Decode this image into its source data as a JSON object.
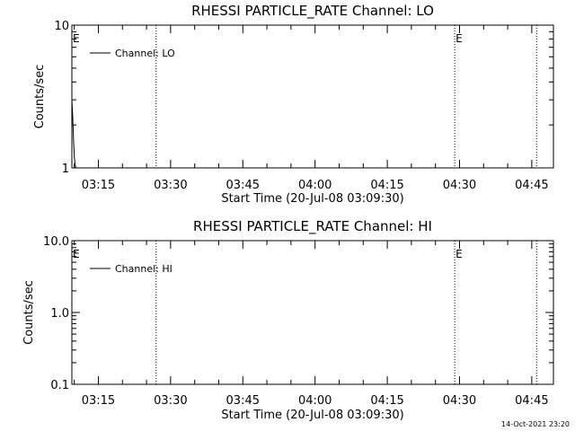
{
  "footer": {
    "timestamp": "14-Oct-2021 23:20"
  },
  "chart_data": [
    {
      "type": "line",
      "title": "RHESSI PARTICLE_RATE Channel: LO",
      "xlabel": "Start Time (20-Jul-08 03:09:30)",
      "ylabel": "Counts/sec",
      "yscale": "log",
      "ylim": [
        1,
        10
      ],
      "y_tick_labels": [
        {
          "value": 1,
          "label": "1"
        },
        {
          "value": 10,
          "label": "10"
        }
      ],
      "x_tick_labels": [
        "03:15",
        "03:30",
        "03:45",
        "04:00",
        "04:15",
        "04:30",
        "04:45"
      ],
      "series": [
        {
          "name": "Channel: LO",
          "x": [
            "03:09:30",
            "03:09:40",
            "03:09:50",
            "03:10:00",
            "03:10:10",
            "03:10:20"
          ],
          "y": [
            3.0,
            2.3,
            1.6,
            1.2,
            1.05,
            1.0
          ]
        }
      ],
      "vertical_markers": [
        {
          "time": "03:27",
          "label": ""
        },
        {
          "time": "04:29",
          "label": "E"
        },
        {
          "time": "04:46",
          "label": ""
        }
      ],
      "start_marker": "E",
      "legend_position": "top-left"
    },
    {
      "type": "line",
      "title": "RHESSI PARTICLE_RATE Channel: HI",
      "xlabel": "Start Time (20-Jul-08 03:09:30)",
      "ylabel": "Counts/sec",
      "yscale": "log",
      "ylim": [
        0.1,
        10
      ],
      "y_tick_labels": [
        {
          "value": 0.1,
          "label": "0.1"
        },
        {
          "value": 1,
          "label": "1.0"
        },
        {
          "value": 10,
          "label": "10.0"
        }
      ],
      "x_tick_labels": [
        "03:15",
        "03:30",
        "03:45",
        "04:00",
        "04:15",
        "04:30",
        "04:45"
      ],
      "series": [
        {
          "name": "Channel: HI",
          "x": [],
          "y": []
        }
      ],
      "vertical_markers": [
        {
          "time": "03:27",
          "label": ""
        },
        {
          "time": "04:29",
          "label": "E"
        },
        {
          "time": "04:46",
          "label": ""
        }
      ],
      "start_marker": "E",
      "legend_position": "top-left"
    }
  ]
}
